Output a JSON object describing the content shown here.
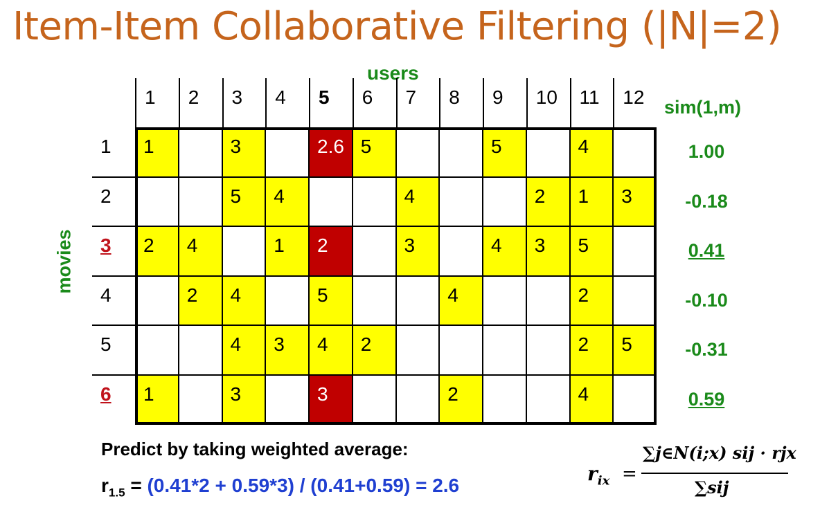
{
  "title": "Item-Item Collaborative Filtering (|N|=2)",
  "axes": {
    "users_label": "users",
    "movies_label": "movies",
    "sim_header": "sim(1,m)"
  },
  "users": [
    "1",
    "2",
    "3",
    "4",
    "5",
    "6",
    "7",
    "8",
    "9",
    "10",
    "11",
    "12"
  ],
  "movies": [
    {
      "label": "1",
      "highlight": false,
      "sim": "1.00",
      "cells": [
        "1",
        "",
        "3",
        "",
        "2.6",
        "5",
        "",
        "",
        "5",
        "",
        "4",
        ""
      ]
    },
    {
      "label": "2",
      "highlight": false,
      "sim": "-0.18",
      "cells": [
        "",
        "",
        "5",
        "4",
        "",
        "",
        "4",
        "",
        "",
        "2",
        "1",
        "3"
      ]
    },
    {
      "label": "3",
      "highlight": true,
      "sim": "0.41",
      "cells": [
        "2",
        "4",
        "",
        "1",
        "2",
        "",
        "3",
        "",
        "4",
        "3",
        "5",
        ""
      ]
    },
    {
      "label": "4",
      "highlight": false,
      "sim": "-0.10",
      "cells": [
        "",
        "2",
        "4",
        "",
        "5",
        "",
        "",
        "4",
        "",
        "",
        "2",
        ""
      ]
    },
    {
      "label": "5",
      "highlight": false,
      "sim": "-0.31",
      "cells": [
        "",
        "",
        "4",
        "3",
        "4",
        "2",
        "",
        "",
        "",
        "",
        "2",
        "5"
      ]
    },
    {
      "label": "6",
      "highlight": true,
      "sim": "0.59",
      "cells": [
        "1",
        "",
        "3",
        "",
        "3",
        "",
        "",
        "2",
        "",
        "",
        "4",
        ""
      ]
    }
  ],
  "colors": {
    "title": "#c5641c",
    "label_green": "#1a8a1a",
    "filled": "#ffff00",
    "highlighted": "#c00000",
    "highlight_row_label": "#c0121b",
    "expression": "#1f3fd1"
  },
  "prediction": {
    "heading": "Predict by taking weighted average:",
    "lhs": "r",
    "lhs_sub": "1.5",
    "equals": " = ",
    "expression": "(0.41*2 + 0.59*3) / (0.41+0.59) = 2.6"
  },
  "formula": {
    "lhs": "r",
    "lhs_sub": "ix",
    "equals": "=",
    "numerator": "∑j∈N(i;x) sij · rjx",
    "denominator": "∑sij"
  }
}
